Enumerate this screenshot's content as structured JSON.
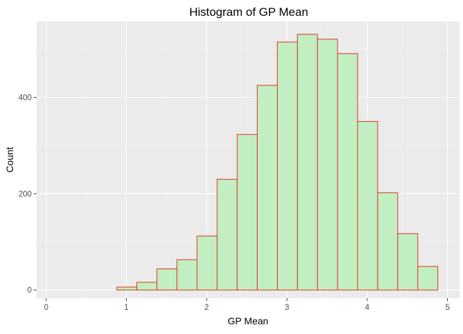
{
  "chart_data": {
    "type": "bar",
    "title": "Histogram of GP Mean",
    "xlabel": "GP Mean",
    "ylabel": "Count",
    "xlim": [
      -0.12,
      5.15
    ],
    "ylim": [
      -17,
      558
    ],
    "x_ticks": [
      0,
      1,
      2,
      3,
      4,
      5
    ],
    "y_ticks": [
      0,
      200,
      400
    ],
    "y_minor_ticks": [
      100,
      300,
      500
    ],
    "bin_width": 0.25,
    "bins": [
      {
        "start": 0.13,
        "end": 0.38,
        "count": 0
      },
      {
        "start": 0.38,
        "end": 0.63,
        "count": 0
      },
      {
        "start": 0.63,
        "end": 0.88,
        "count": 0
      },
      {
        "start": 0.88,
        "end": 1.13,
        "count": 6
      },
      {
        "start": 1.13,
        "end": 1.38,
        "count": 16
      },
      {
        "start": 1.38,
        "end": 1.63,
        "count": 44
      },
      {
        "start": 1.63,
        "end": 1.88,
        "count": 63
      },
      {
        "start": 1.88,
        "end": 2.13,
        "count": 112
      },
      {
        "start": 2.13,
        "end": 2.38,
        "count": 230
      },
      {
        "start": 2.38,
        "end": 2.63,
        "count": 323
      },
      {
        "start": 2.63,
        "end": 2.88,
        "count": 425
      },
      {
        "start": 2.88,
        "end": 3.13,
        "count": 515
      },
      {
        "start": 3.13,
        "end": 3.38,
        "count": 531
      },
      {
        "start": 3.38,
        "end": 3.63,
        "count": 521
      },
      {
        "start": 3.63,
        "end": 3.88,
        "count": 491
      },
      {
        "start": 3.88,
        "end": 4.13,
        "count": 350
      },
      {
        "start": 4.13,
        "end": 4.38,
        "count": 202
      },
      {
        "start": 4.38,
        "end": 4.63,
        "count": 117
      },
      {
        "start": 4.63,
        "end": 4.88,
        "count": 49
      }
    ],
    "grid": true,
    "legend": "none",
    "colors": {
      "bar_fill": "#c1efc1",
      "bar_stroke": "#e0301e",
      "panel_background": "#ebebeb",
      "grid_major": "#ffffff",
      "grid_minor": "#f5f5f5",
      "tick_label": "#4d4d4d",
      "axis_title": "#000000"
    }
  }
}
